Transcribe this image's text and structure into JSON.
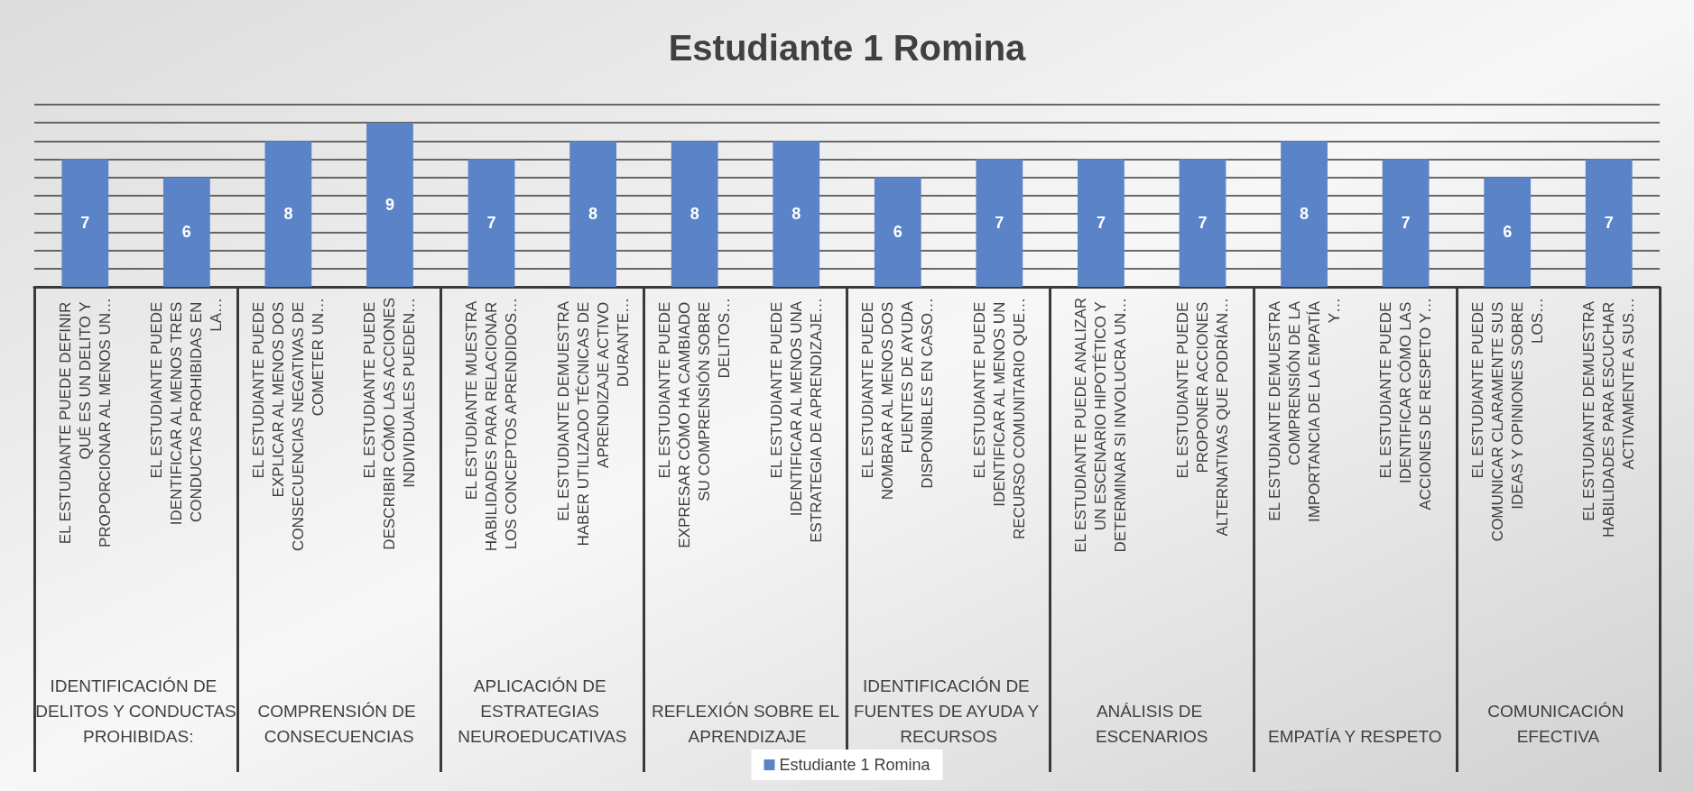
{
  "chart_data": {
    "type": "bar",
    "title": "Estudiante 1 Romina",
    "categories": [
      "EL ESTUDIANTE PUEDE DEFINIR QUÉ ES UN DELITO Y PROPORCIONAR AL MENOS UN…",
      "EL ESTUDIANTE PUEDE IDENTIFICAR AL MENOS TRES CONDUCTAS PROHIBIDAS EN LA…",
      "EL ESTUDIANTE PUEDE EXPLICAR AL MENOS DOS CONSECUENCIAS NEGATIVAS DE COMETER UN…",
      "EL ESTUDIANTE PUEDE DESCRIBIR CÓMO LAS ACCIONES INDIVIDUALES PUEDEN…",
      "EL ESTUDIANTE MUESTRA HABILIDADES PARA RELACIONAR LOS CONCEPTOS APRENDIDOS…",
      "EL ESTUDIANTE DEMUESTRA HABER UTILIZADO TÉCNICAS DE APRENDIZAJE ACTIVO DURANTE…",
      "EL ESTUDIANTE PUEDE EXPRESAR CÓMO HA CAMBIADO SU COMPRENSIÓN SOBRE DELITOS…",
      "EL ESTUDIANTE PUEDE IDENTIFICAR AL MENOS UNA ESTRATEGIA DE APRENDIZAJE…",
      "EL ESTUDIANTE PUEDE NOMBRAR AL MENOS DOS FUENTES DE AYUDA DISPONIBLES EN CASO…",
      "EL ESTUDIANTE PUEDE IDENTIFICAR AL MENOS UN RECURSO COMUNITARIO QUE…",
      "EL ESTUDIANTE PUEDE ANALIZAR UN ESCENARIO HIPOTÉTICO Y DETERMINAR SI INVOLUCRA UN…",
      "EL ESTUDIANTE PUEDE PROPONER ACCIONES ALTERNATIVAS QUE PODRÍAN…",
      "EL ESTUDIANTE DEMUESTRA COMPRENSIÓN DE LA IMPORTANCIA DE LA EMPATÍA Y…",
      "EL ESTUDIANTE PUEDE IDENTIFICAR CÓMO LAS ACCIONES DE RESPETO Y…",
      "EL ESTUDIANTE PUEDE COMUNICAR CLARAMENTE SUS IDEAS Y OPINIONES SOBRE LOS…",
      "EL ESTUDIANTE DEMUESTRA HABILIDADES PARA ESCUCHAR ACTIVAMENTE A SUS…"
    ],
    "series": [
      {
        "name": "Estudiante 1 Romina",
        "color": "#5b84c8",
        "values": [
          7,
          6,
          8,
          9,
          7,
          8,
          8,
          8,
          6,
          7,
          7,
          7,
          8,
          7,
          6,
          7
        ]
      }
    ],
    "annotations": [
      "IDENTIFICACIÓN DE DELITOS Y CONDUCTAS PROHIBIDAS:",
      "COMPRENSIÓN DE CONSECUENCIAS",
      "APLICACIÓN DE ESTRATEGIAS NEUROEDUCATIVAS",
      "REFLEXIÓN SOBRE EL APRENDIZAJE",
      "IDENTIFICACIÓN DE FUENTES DE AYUDA Y RECURSOS",
      "ANÁLISIS DE ESCENARIOS",
      "EMPATÍA Y RESPETO",
      "COMUNICACIÓN EFECTIVA"
    ],
    "ylim": [
      0,
      10
    ],
    "yticks": [
      {
        "value": 0,
        "label": null
      },
      {
        "value": 1,
        "label": null
      },
      {
        "value": 2,
        "label": null
      },
      {
        "value": 3,
        "label": null
      },
      {
        "value": 4,
        "label": null
      },
      {
        "value": 5,
        "label": null
      },
      {
        "value": 6,
        "label": null
      },
      {
        "value": 7,
        "label": null
      },
      {
        "value": 8,
        "label": null
      },
      {
        "value": 9,
        "label": null
      },
      {
        "value": 10,
        "label": null
      }
    ],
    "tick_labels": "x",
    "grid": true,
    "legend": "bottom",
    "data_labels": true
  }
}
